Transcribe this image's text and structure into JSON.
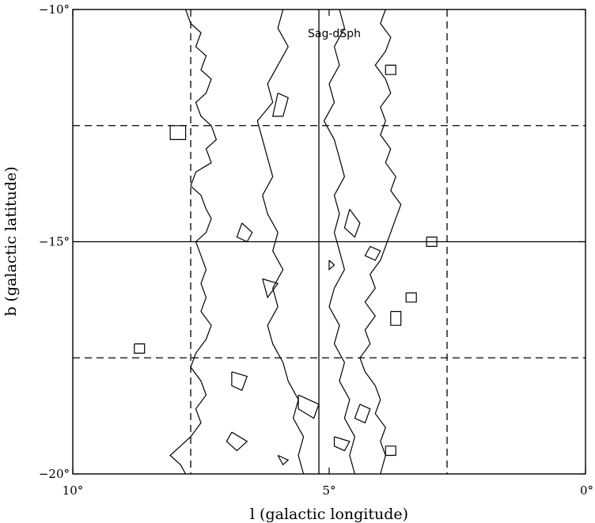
{
  "chart_data": {
    "type": "contour",
    "xlabel": "l (galactic longitude)",
    "ylabel": "b (galactic latitude)",
    "xlim": [
      10,
      0
    ],
    "ylim": [
      -20,
      -10
    ],
    "x_ticks": [
      {
        "value": 10,
        "label": "10°"
      },
      {
        "value": 5,
        "label": "5°"
      },
      {
        "value": 0,
        "label": "0°"
      }
    ],
    "y_ticks": [
      {
        "value": -10,
        "label": "−10°"
      },
      {
        "value": -15,
        "label": "−15°"
      },
      {
        "value": -20,
        "label": "−20°"
      }
    ],
    "grid": {
      "solid_x": [
        5.2
      ],
      "solid_y": [
        -15
      ],
      "dashed_x": [
        7.7,
        2.7
      ],
      "dashed_y": [
        -12.5,
        -17.5
      ]
    },
    "annotations": [
      {
        "text": "Sag-dSph",
        "l": 4.9,
        "b": -10.6
      }
    ],
    "contours": [
      {
        "name": "outer-east",
        "points": [
          [
            7.8,
            -10
          ],
          [
            7.7,
            -10.3
          ],
          [
            7.5,
            -10.5
          ],
          [
            7.6,
            -10.8
          ],
          [
            7.4,
            -11
          ],
          [
            7.5,
            -11.3
          ],
          [
            7.3,
            -11.5
          ],
          [
            7.4,
            -11.8
          ],
          [
            7.6,
            -12
          ],
          [
            7.5,
            -12.3
          ],
          [
            7.3,
            -12.5
          ],
          [
            7.2,
            -12.8
          ],
          [
            7.4,
            -13
          ],
          [
            7.3,
            -13.3
          ],
          [
            7.6,
            -13.5
          ],
          [
            7.7,
            -13.8
          ],
          [
            7.5,
            -14
          ],
          [
            7.4,
            -14.3
          ],
          [
            7.3,
            -14.5
          ],
          [
            7.4,
            -14.8
          ],
          [
            7.6,
            -15
          ],
          [
            7.5,
            -15.3
          ],
          [
            7.4,
            -15.6
          ],
          [
            7.5,
            -15.9
          ],
          [
            7.4,
            -16.2
          ],
          [
            7.5,
            -16.5
          ],
          [
            7.3,
            -16.8
          ],
          [
            7.4,
            -17.1
          ],
          [
            7.6,
            -17.4
          ],
          [
            7.7,
            -17.7
          ],
          [
            7.5,
            -18
          ],
          [
            7.4,
            -18.3
          ],
          [
            7.6,
            -18.6
          ],
          [
            7.5,
            -18.9
          ],
          [
            7.7,
            -19.2
          ],
          [
            7.9,
            -19.4
          ],
          [
            8.1,
            -19.6
          ],
          [
            7.9,
            -19.8
          ],
          [
            7.8,
            -20
          ]
        ]
      },
      {
        "name": "outer-west",
        "points": [
          [
            3.9,
            -10
          ],
          [
            4.0,
            -10.3
          ],
          [
            3.8,
            -10.6
          ],
          [
            3.9,
            -10.9
          ],
          [
            4.1,
            -11.2
          ],
          [
            3.9,
            -11.5
          ],
          [
            3.8,
            -11.8
          ],
          [
            4.0,
            -12.1
          ],
          [
            3.9,
            -12.4
          ],
          [
            4.0,
            -12.7
          ],
          [
            3.8,
            -13
          ],
          [
            3.9,
            -13.3
          ],
          [
            3.7,
            -13.6
          ],
          [
            3.8,
            -13.9
          ],
          [
            3.6,
            -14.2
          ],
          [
            3.7,
            -14.5
          ],
          [
            3.8,
            -14.8
          ],
          [
            3.9,
            -15.1
          ],
          [
            4.0,
            -15.4
          ],
          [
            4.2,
            -15.7
          ],
          [
            4.1,
            -16
          ],
          [
            4.3,
            -16.3
          ],
          [
            4.1,
            -16.6
          ],
          [
            4.3,
            -16.9
          ],
          [
            4.2,
            -17.2
          ],
          [
            4.4,
            -17.5
          ],
          [
            4.3,
            -17.8
          ],
          [
            4.1,
            -18.1
          ],
          [
            4.0,
            -18.4
          ],
          [
            4.1,
            -18.7
          ],
          [
            3.9,
            -19
          ],
          [
            4.0,
            -19.3
          ],
          [
            3.9,
            -19.6
          ],
          [
            4.0,
            -20
          ]
        ]
      },
      {
        "name": "inner-east",
        "points": [
          [
            5.9,
            -10
          ],
          [
            6.0,
            -10.4
          ],
          [
            5.8,
            -10.8
          ],
          [
            6.0,
            -11.2
          ],
          [
            6.2,
            -11.6
          ],
          [
            6.1,
            -12
          ],
          [
            6.4,
            -12.4
          ],
          [
            6.3,
            -12.8
          ],
          [
            6.2,
            -13.2
          ],
          [
            6.1,
            -13.6
          ],
          [
            6.3,
            -14
          ],
          [
            6.2,
            -14.4
          ],
          [
            6.0,
            -14.8
          ],
          [
            6.1,
            -15.2
          ],
          [
            5.9,
            -15.6
          ],
          [
            6.1,
            -16
          ],
          [
            6.0,
            -16.4
          ],
          [
            6.2,
            -16.8
          ],
          [
            6.1,
            -17.2
          ],
          [
            5.9,
            -17.6
          ],
          [
            5.8,
            -18
          ],
          [
            5.6,
            -18.4
          ],
          [
            5.7,
            -18.8
          ],
          [
            5.5,
            -19.2
          ],
          [
            5.6,
            -19.6
          ],
          [
            5.5,
            -20
          ]
        ]
      },
      {
        "name": "inner-west",
        "points": [
          [
            4.8,
            -10
          ],
          [
            4.7,
            -10.4
          ],
          [
            4.9,
            -10.8
          ],
          [
            4.8,
            -11.2
          ],
          [
            5.0,
            -11.6
          ],
          [
            4.9,
            -12
          ],
          [
            5.1,
            -12.4
          ],
          [
            4.9,
            -12.8
          ],
          [
            4.8,
            -13.2
          ],
          [
            4.7,
            -13.6
          ],
          [
            4.9,
            -14
          ],
          [
            4.8,
            -14.4
          ],
          [
            4.9,
            -14.8
          ],
          [
            4.8,
            -15.2
          ],
          [
            4.7,
            -15.6
          ],
          [
            4.9,
            -16
          ],
          [
            5.0,
            -16.4
          ],
          [
            4.8,
            -16.8
          ],
          [
            4.9,
            -17.2
          ],
          [
            4.7,
            -17.6
          ],
          [
            4.8,
            -18
          ],
          [
            4.6,
            -18.4
          ],
          [
            4.7,
            -18.8
          ],
          [
            4.5,
            -19.2
          ],
          [
            4.6,
            -19.6
          ],
          [
            4.5,
            -20
          ]
        ]
      },
      {
        "name": "blob-1",
        "points": [
          [
            6.0,
            -11.8
          ],
          [
            5.8,
            -11.9
          ],
          [
            5.9,
            -12.3
          ],
          [
            6.1,
            -12.3
          ],
          [
            6.0,
            -11.8
          ]
        ]
      },
      {
        "name": "blob-2",
        "points": [
          [
            6.7,
            -14.6
          ],
          [
            6.5,
            -14.8
          ],
          [
            6.6,
            -15.0
          ],
          [
            6.8,
            -14.9
          ],
          [
            6.7,
            -14.6
          ]
        ]
      },
      {
        "name": "blob-3",
        "points": [
          [
            6.3,
            -15.8
          ],
          [
            6.0,
            -15.9
          ],
          [
            6.2,
            -16.2
          ],
          [
            6.3,
            -15.8
          ]
        ]
      },
      {
        "name": "blob-4",
        "points": [
          [
            4.6,
            -14.3
          ],
          [
            4.4,
            -14.6
          ],
          [
            4.5,
            -14.9
          ],
          [
            4.7,
            -14.7
          ],
          [
            4.6,
            -14.3
          ]
        ]
      },
      {
        "name": "blob-5",
        "points": [
          [
            4.2,
            -15.1
          ],
          [
            4.0,
            -15.2
          ],
          [
            4.1,
            -15.4
          ],
          [
            4.3,
            -15.3
          ],
          [
            4.2,
            -15.1
          ]
        ]
      },
      {
        "name": "blob-6",
        "points": [
          [
            6.9,
            -17.8
          ],
          [
            6.6,
            -17.9
          ],
          [
            6.7,
            -18.2
          ],
          [
            6.9,
            -18.1
          ],
          [
            6.9,
            -17.8
          ]
        ]
      },
      {
        "name": "blob-7",
        "points": [
          [
            5.6,
            -18.3
          ],
          [
            5.2,
            -18.5
          ],
          [
            5.3,
            -18.8
          ],
          [
            5.6,
            -18.6
          ],
          [
            5.6,
            -18.3
          ]
        ]
      },
      {
        "name": "blob-8",
        "points": [
          [
            4.4,
            -18.5
          ],
          [
            4.2,
            -18.6
          ],
          [
            4.3,
            -18.9
          ],
          [
            4.5,
            -18.8
          ],
          [
            4.4,
            -18.5
          ]
        ]
      },
      {
        "name": "blob-9",
        "points": [
          [
            4.9,
            -19.2
          ],
          [
            4.6,
            -19.3
          ],
          [
            4.7,
            -19.5
          ],
          [
            4.9,
            -19.4
          ],
          [
            4.9,
            -19.2
          ]
        ]
      },
      {
        "name": "blob-10",
        "points": [
          [
            6.9,
            -19.1
          ],
          [
            6.6,
            -19.3
          ],
          [
            6.8,
            -19.5
          ],
          [
            7.0,
            -19.3
          ],
          [
            6.9,
            -19.1
          ]
        ]
      },
      {
        "name": "blob-11",
        "points": [
          [
            6.0,
            -19.6
          ],
          [
            5.8,
            -19.7
          ],
          [
            5.9,
            -19.8
          ],
          [
            6.0,
            -19.6
          ]
        ]
      },
      {
        "name": "blob-12",
        "points": [
          [
            5.0,
            -15.4
          ],
          [
            4.9,
            -15.5
          ],
          [
            5.0,
            -15.6
          ],
          [
            5.0,
            -15.4
          ]
        ]
      },
      {
        "name": "square-1",
        "points": [
          [
            8.1,
            -12.5
          ],
          [
            7.8,
            -12.5
          ],
          [
            7.8,
            -12.8
          ],
          [
            8.1,
            -12.8
          ],
          [
            8.1,
            -12.5
          ]
        ]
      },
      {
        "name": "square-2",
        "points": [
          [
            3.9,
            -11.2
          ],
          [
            3.7,
            -11.2
          ],
          [
            3.7,
            -11.4
          ],
          [
            3.9,
            -11.4
          ],
          [
            3.9,
            -11.2
          ]
        ]
      },
      {
        "name": "square-3",
        "points": [
          [
            3.1,
            -14.9
          ],
          [
            2.9,
            -14.9
          ],
          [
            2.9,
            -15.1
          ],
          [
            3.1,
            -15.1
          ],
          [
            3.1,
            -14.9
          ]
        ]
      },
      {
        "name": "square-4",
        "points": [
          [
            3.5,
            -16.1
          ],
          [
            3.3,
            -16.1
          ],
          [
            3.3,
            -16.3
          ],
          [
            3.5,
            -16.3
          ],
          [
            3.5,
            -16.1
          ]
        ]
      },
      {
        "name": "square-5",
        "points": [
          [
            3.8,
            -16.5
          ],
          [
            3.6,
            -16.5
          ],
          [
            3.6,
            -16.8
          ],
          [
            3.8,
            -16.8
          ],
          [
            3.8,
            -16.5
          ]
        ]
      },
      {
        "name": "square-6",
        "points": [
          [
            8.8,
            -17.2
          ],
          [
            8.6,
            -17.2
          ],
          [
            8.6,
            -17.4
          ],
          [
            8.8,
            -17.4
          ],
          [
            8.8,
            -17.2
          ]
        ]
      },
      {
        "name": "square-7",
        "points": [
          [
            3.9,
            -19.4
          ],
          [
            3.7,
            -19.4
          ],
          [
            3.7,
            -19.6
          ],
          [
            3.9,
            -19.6
          ],
          [
            3.9,
            -19.4
          ]
        ]
      }
    ]
  }
}
